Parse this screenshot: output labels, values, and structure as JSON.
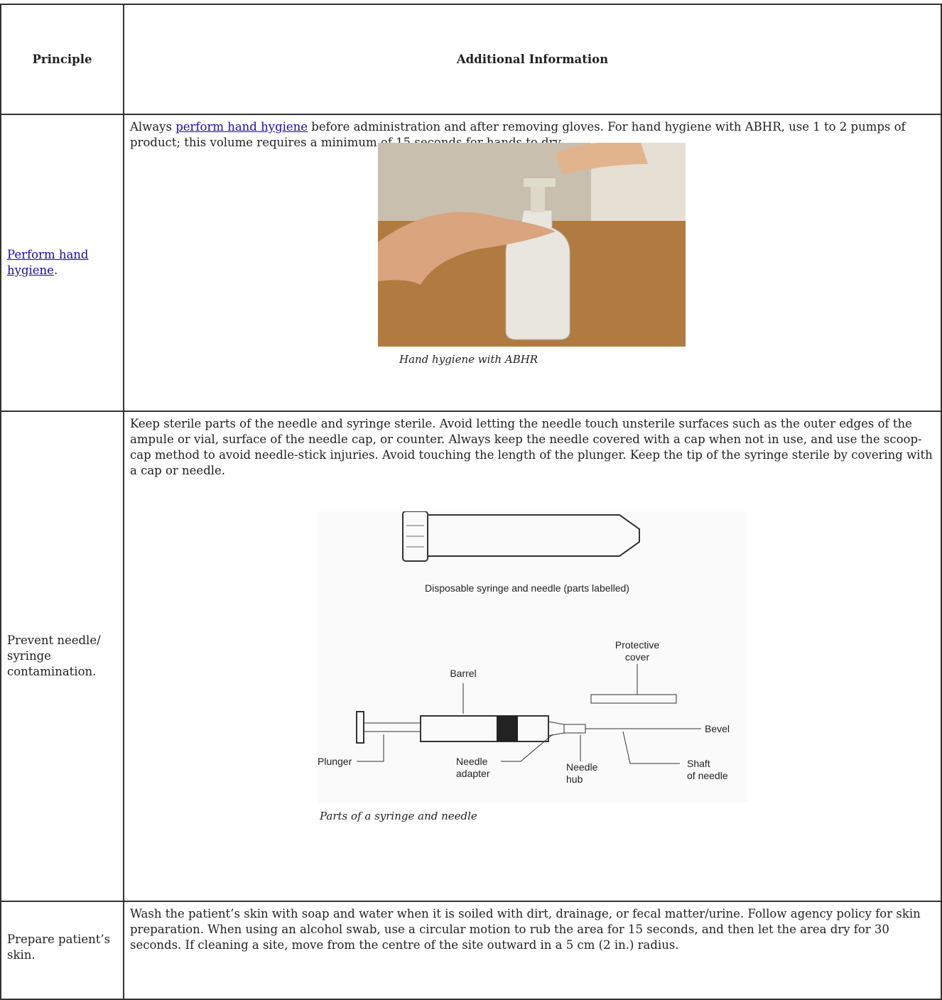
{
  "table": {
    "header": [
      "Principle",
      "Additional Information"
    ],
    "rows": [
      {
        "principle": {
          "link": "Perform hand hygiene",
          "after": "."
        },
        "info": {
          "before": "Always ",
          "link": "perform hand hygiene",
          "after": " before administration and after removing gloves. For hand hygiene with ABHR, use 1 to 2 pumps of product; this volume requires a minimum of 15 seconds for hands to dry."
        },
        "figure": {
          "caption": "Hand hygiene with ABHR"
        }
      },
      {
        "principle": {
          "text": "Prevent needle/ syringe contamination."
        },
        "info": {
          "text": "Keep sterile parts of the needle and syringe sterile. Avoid letting the needle touch unsterile surfaces such as the outer edges of the ampule or vial, surface of the needle cap, or counter. Always keep the needle covered with a cap when not in use, and use the scoop-cap method to avoid needle-stick injuries. Avoid touching the length of the plunger. Keep the tip of the syringe sterile by covering with a cap or needle."
        },
        "figure": {
          "caption": "Parts of a syringe and needle",
          "diagram": {
            "title": "Disposable syringe and needle (parts labelled)",
            "labels": {
              "protective_cover": [
                "Protective",
                "cover"
              ],
              "barrel": "Barrel",
              "bevel": "Bevel",
              "plunger": "Plunger",
              "needle_adapter": [
                "Needle",
                "adapter"
              ],
              "needle_hub": [
                "Needle",
                "hub"
              ],
              "shaft": [
                "Shaft",
                "of needle"
              ]
            }
          }
        }
      },
      {
        "principle": {
          "text": "Prepare patient’s skin."
        },
        "info": {
          "text": "Wash the patient’s skin with soap and water when it is soiled with dirt, drainage, or fecal matter/urine. Follow agency policy for skin preparation. When using an alcohol swab, use a circular motion to rub the area for 15 seconds, and then let the area dry for 30 seconds. If cleaning a site, move from the centre of the site outward in a 5 cm (2 in.) radius."
        }
      }
    ]
  }
}
